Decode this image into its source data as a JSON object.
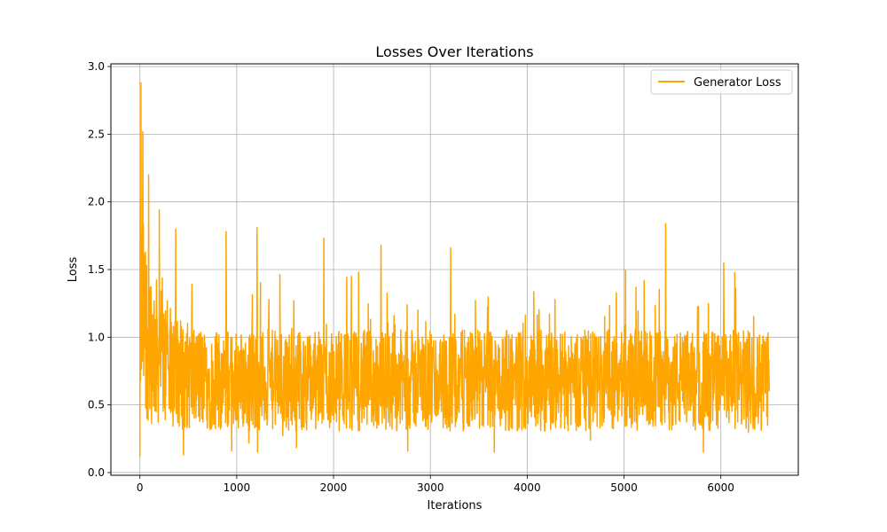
{
  "chart_data": {
    "type": "line",
    "title": "Losses Over Iterations",
    "xlabel": "Iterations",
    "ylabel": "Loss",
    "xlim": [
      -300,
      6800
    ],
    "ylim": [
      -0.02,
      3.02
    ],
    "x_ticks": [
      0,
      1000,
      2000,
      3000,
      4000,
      5000,
      6000
    ],
    "y_ticks": [
      0.0,
      0.5,
      1.0,
      1.5,
      2.0,
      2.5,
      3.0
    ],
    "x_tick_labels": [
      "0",
      "1000",
      "2000",
      "3000",
      "4000",
      "5000",
      "6000"
    ],
    "y_tick_labels": [
      "0.0",
      "0.5",
      "1.0",
      "1.5",
      "2.0",
      "2.5",
      "3.0"
    ],
    "grid": true,
    "legend_position": "top-right",
    "series": [
      {
        "name": "Generator Loss",
        "color": "#ffa500",
        "x_start": 0,
        "x_end": 6500,
        "approx_mean": 0.68,
        "approx_range": [
          0.12,
          2.88
        ],
        "notable_points": [
          {
            "x": 0,
            "y": 0.12
          },
          {
            "x": 10,
            "y": 2.88
          },
          {
            "x": 30,
            "y": 2.52
          },
          {
            "x": 90,
            "y": 2.2
          },
          {
            "x": 200,
            "y": 1.94
          },
          {
            "x": 370,
            "y": 1.8
          },
          {
            "x": 450,
            "y": 0.13
          },
          {
            "x": 890,
            "y": 1.78
          },
          {
            "x": 1210,
            "y": 1.81
          },
          {
            "x": 1900,
            "y": 1.73
          },
          {
            "x": 2490,
            "y": 1.68
          },
          {
            "x": 3210,
            "y": 1.66
          },
          {
            "x": 5430,
            "y": 1.84
          },
          {
            "x": 6030,
            "y": 1.55
          },
          {
            "x": 6500,
            "y": 0.6
          }
        ]
      }
    ]
  }
}
